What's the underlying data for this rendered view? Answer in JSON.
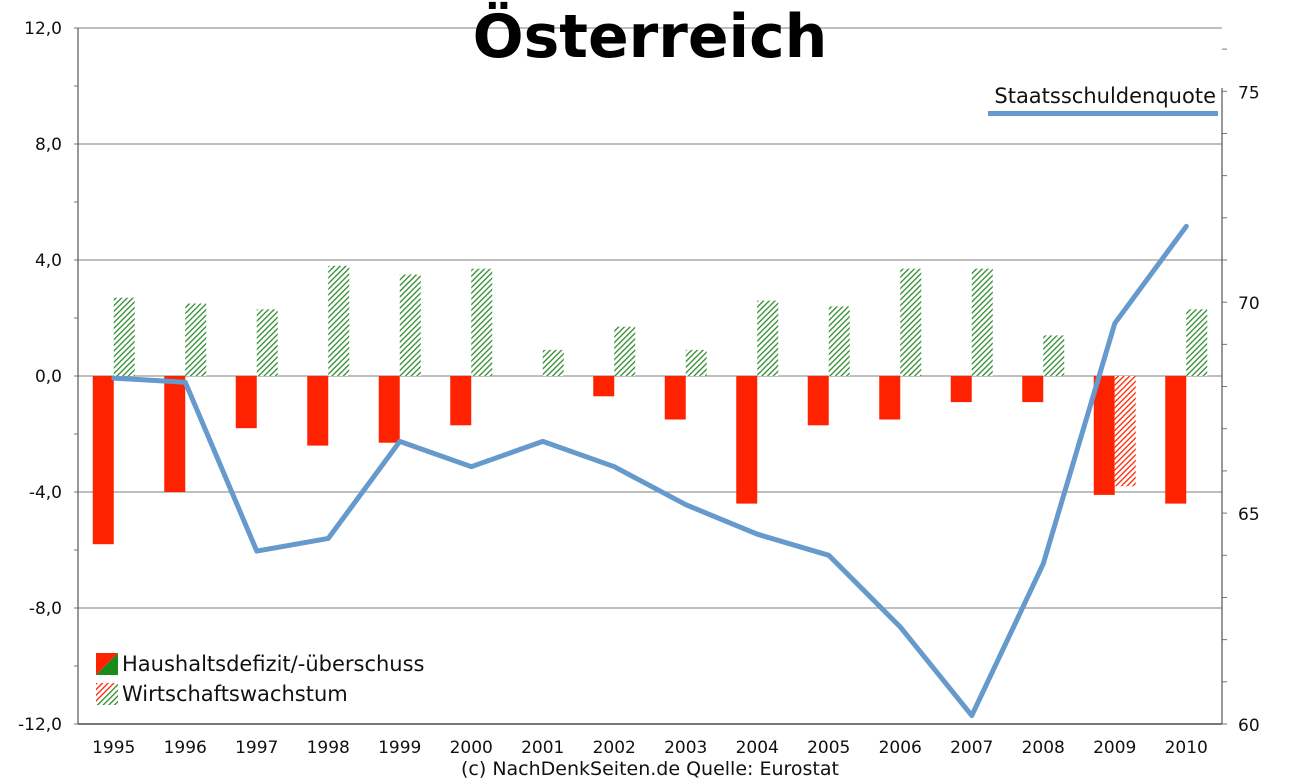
{
  "title": "Österreich",
  "source": "(c) NachDenkSeiten.de Quelle: Eurostat",
  "legend": {
    "deficit_label": "Haushaltsdefizit/-überschuss",
    "growth_label": "Wirtschaftswachstum",
    "debt_label": "Staatsschuldenquote"
  },
  "colors": {
    "deficit": "#ff2200",
    "surplus": "#1a8a1a",
    "growth": "#2e8b2e",
    "debt_line": "#6699cc",
    "grid": "#999999"
  },
  "chart_data": {
    "type": "bar",
    "categories": [
      "1995",
      "1996",
      "1997",
      "1998",
      "1999",
      "2000",
      "2001",
      "2002",
      "2003",
      "2004",
      "2005",
      "2006",
      "2007",
      "2008",
      "2009",
      "2010"
    ],
    "left_axis": {
      "ylim": [
        -12,
        12
      ],
      "ticks": [
        "12,0",
        "8,0",
        "4,0",
        "0,0",
        "-4,0",
        "-8,0",
        "-12,0"
      ]
    },
    "right_axis": {
      "ylim": [
        60,
        76.5
      ],
      "ticks": [
        "75",
        "70",
        "65",
        "60"
      ]
    },
    "series": [
      {
        "name": "Haushaltsdefizit/-überschuss",
        "axis": "left",
        "style": "solid",
        "values": [
          -5.8,
          -4.0,
          -1.8,
          -2.4,
          -2.3,
          -1.7,
          0.0,
          -0.7,
          -1.5,
          -4.4,
          -1.7,
          -1.5,
          -0.9,
          -0.9,
          -4.1,
          -4.4
        ]
      },
      {
        "name": "Wirtschaftswachstum",
        "axis": "left",
        "style": "hatched",
        "values": [
          2.7,
          2.5,
          2.3,
          3.8,
          3.5,
          3.7,
          0.9,
          1.7,
          0.9,
          2.6,
          2.4,
          3.7,
          3.7,
          1.4,
          -3.8,
          2.3
        ]
      },
      {
        "name": "Staatsschuldenquote",
        "axis": "right",
        "type": "line",
        "values": [
          68.2,
          68.1,
          64.1,
          64.4,
          66.7,
          66.1,
          66.7,
          66.1,
          65.2,
          64.5,
          64.0,
          62.3,
          60.2,
          63.8,
          69.5,
          71.8
        ]
      }
    ]
  }
}
